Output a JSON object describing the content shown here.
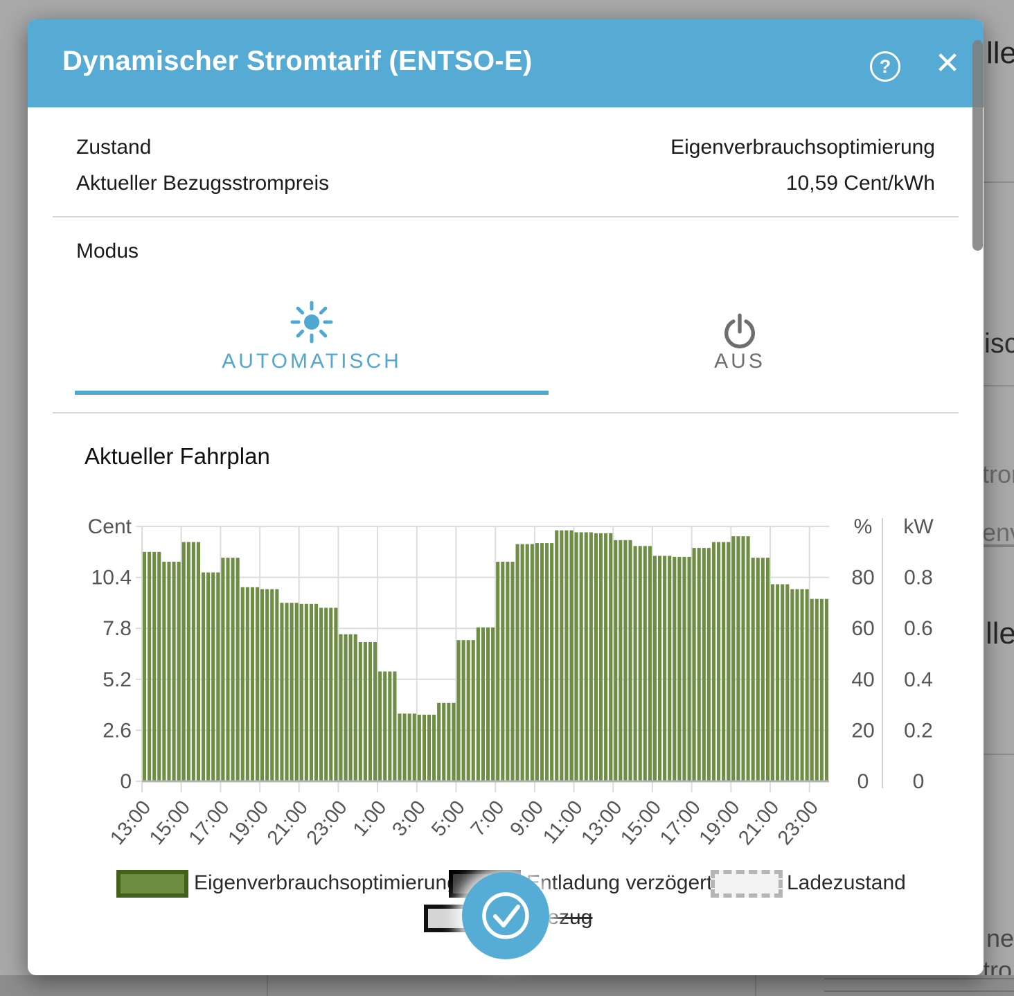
{
  "background": {
    "color": "#a9a9a9",
    "texts": [
      "lle",
      "isc",
      "tror",
      "enve",
      "lle",
      "ner",
      "tro"
    ]
  },
  "header": {
    "title": "Dynamischer Stromtarif (ENTSO-E)",
    "color": "#55abd4",
    "help_glyph": "?",
    "close_glyph": "✕"
  },
  "status": {
    "rows": [
      {
        "label": "Zustand",
        "value": "Eigenverbrauchsoptimierung"
      },
      {
        "label": "Aktueller Bezugsstrompreis",
        "value": "10,59 Cent/kWh"
      }
    ]
  },
  "modus": {
    "label": "Modus",
    "tabs": [
      {
        "label": "AUTOMATISCH",
        "icon": "sun-icon",
        "active": true,
        "color": "#4fa8d2"
      },
      {
        "label": "AUS",
        "icon": "power-icon",
        "active": false,
        "color": "#6e6e6e"
      }
    ]
  },
  "schedule": {
    "title": "Aktueller Fahrplan"
  },
  "chart_data": {
    "type": "bar",
    "title": "Aktueller Fahrplan",
    "bar_color": "#6d8e44",
    "grid": true,
    "bars_per_hour": 4,
    "y_left": {
      "label": "Cent",
      "ticks": [
        0,
        2.6,
        5.2,
        7.8,
        10.4
      ],
      "max": 13
    },
    "y_right_percent": {
      "label": "%",
      "ticks": [
        0,
        20,
        40,
        60,
        80
      ],
      "max": 100
    },
    "y_right_kw": {
      "label": "kW",
      "ticks": [
        0,
        0.2,
        0.4,
        0.6,
        0.8
      ],
      "max": 1
    },
    "x_tick_labels": [
      "13:00",
      "15:00",
      "17:00",
      "19:00",
      "21:00",
      "23:00",
      "1:00",
      "3:00",
      "5:00",
      "7:00",
      "9:00",
      "11:00",
      "13:00",
      "15:00",
      "17:00",
      "19:00",
      "21:00",
      "23:00"
    ],
    "series": [
      {
        "name": "Eigenverbrauchsoptimierung",
        "unit": "Cent/kWh",
        "start": "13:00",
        "hourly_values_cent": [
          11.7,
          11.2,
          12.2,
          10.65,
          11.4,
          9.9,
          9.8,
          9.1,
          9.05,
          8.85,
          7.5,
          7.1,
          5.6,
          3.45,
          3.4,
          4.0,
          7.2,
          7.85,
          11.2,
          12.1,
          12.15,
          12.8,
          12.7,
          12.65,
          12.3,
          12.0,
          11.5,
          11.45,
          11.9,
          12.2,
          12.5,
          11.4,
          10.05,
          9.8,
          9.3
        ]
      }
    ],
    "legend": [
      {
        "label": "Eigenverbrauchsoptimierung",
        "fill": "#6d8e3f",
        "border": "#43601b",
        "style": "solid"
      },
      {
        "label": "Entladung verzögert",
        "fill": "#3a3a3a",
        "border": "#000000",
        "style": "solid"
      },
      {
        "label": "Ladezustand",
        "fill": "#f3f3f3",
        "border": "#b5b5b5",
        "style": "dashed"
      },
      {
        "label": "Netzbezug",
        "fill": "#d4d4d4",
        "border": "#111111",
        "style": "solid",
        "strikethrough": true
      }
    ]
  },
  "fab": {
    "color": "#55add6",
    "icon": "check-icon"
  }
}
